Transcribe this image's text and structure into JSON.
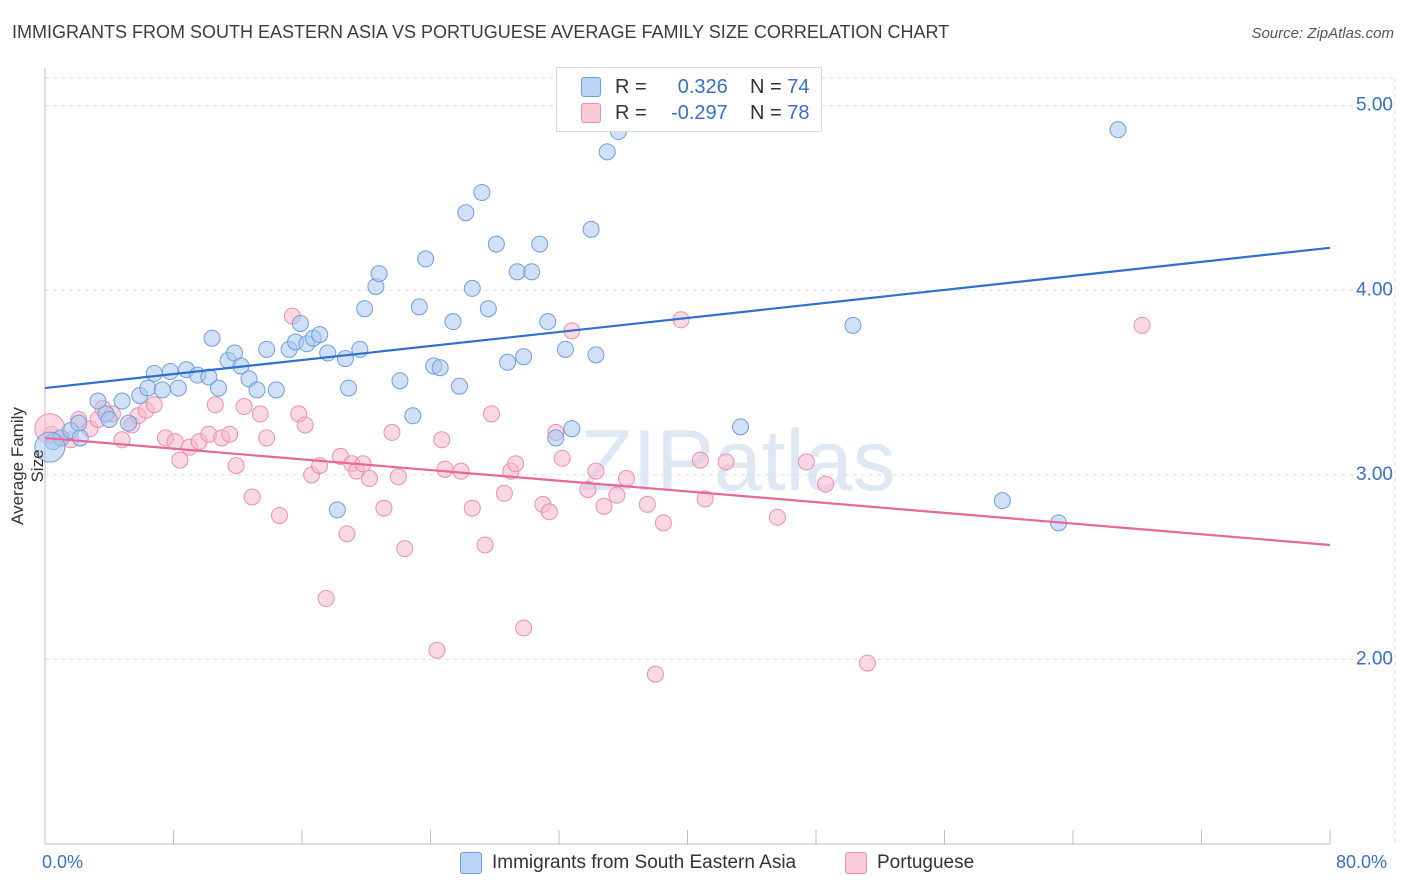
{
  "title": "IMMIGRANTS FROM SOUTH EASTERN ASIA VS PORTUGUESE AVERAGE FAMILY SIZE CORRELATION CHART",
  "source": "Source: ZipAtlas.com",
  "watermark": "ZIPatlas",
  "legend": {
    "row1": {
      "r_label": "R =",
      "r_value": "0.326",
      "n_label": "N =",
      "n_value": "74"
    },
    "row2": {
      "r_label": "R =",
      "r_value": "-0.297",
      "n_label": "N =",
      "n_value": "78"
    }
  },
  "bottom_legend": {
    "series1": "Immigrants from South Eastern Asia",
    "series2": "Portuguese"
  },
  "colors": {
    "blue_fill": "#a9c6ef",
    "blue_stroke": "#6f9ee0",
    "blue_line": "#2f6fcf",
    "pink_fill": "#f6b8cc",
    "pink_stroke": "#ec8fae",
    "pink_line": "#e8679a",
    "axis_text": "#3a6fc4"
  },
  "chart_data": {
    "type": "scatter",
    "title": "IMMIGRANTS FROM SOUTH EASTERN ASIA VS PORTUGUESE AVERAGE FAMILY SIZE CORRELATION CHART",
    "xlabel": "",
    "ylabel": "Average Family Size",
    "xlim": [
      0,
      80
    ],
    "ylim": [
      1.0,
      5.15
    ],
    "x_tick_labels": [
      "0.0%",
      "80.0%"
    ],
    "y_ticks": [
      2.0,
      3.0,
      4.0,
      5.0
    ],
    "y_tick_labels": [
      "2.00",
      "3.00",
      "4.00",
      "5.00"
    ],
    "grid": true,
    "legend_position": "top-center",
    "series": [
      {
        "name": "Immigrants from South Eastern Asia",
        "trend": {
          "x": [
            0,
            80
          ],
          "y": [
            3.47,
            4.23
          ]
        },
        "points": [
          [
            0.5,
            3.18
          ],
          [
            1.0,
            3.2
          ],
          [
            1.6,
            3.24
          ],
          [
            2.1,
            3.28
          ],
          [
            2.2,
            3.2
          ],
          [
            3.3,
            3.4
          ],
          [
            3.8,
            3.33
          ],
          [
            4.0,
            3.3
          ],
          [
            4.8,
            3.4
          ],
          [
            5.2,
            3.28
          ],
          [
            5.9,
            3.43
          ],
          [
            6.4,
            3.47
          ],
          [
            6.8,
            3.55
          ],
          [
            7.3,
            3.46
          ],
          [
            7.8,
            3.56
          ],
          [
            8.3,
            3.47
          ],
          [
            8.8,
            3.57
          ],
          [
            9.5,
            3.54
          ],
          [
            10.2,
            3.53
          ],
          [
            10.4,
            3.74
          ],
          [
            10.8,
            3.47
          ],
          [
            11.4,
            3.62
          ],
          [
            11.8,
            3.66
          ],
          [
            12.2,
            3.59
          ],
          [
            12.7,
            3.52
          ],
          [
            13.2,
            3.46
          ],
          [
            13.8,
            3.68
          ],
          [
            14.4,
            3.46
          ],
          [
            15.2,
            3.68
          ],
          [
            15.6,
            3.72
          ],
          [
            15.9,
            3.82
          ],
          [
            16.3,
            3.71
          ],
          [
            16.7,
            3.74
          ],
          [
            17.1,
            3.76
          ],
          [
            17.6,
            3.66
          ],
          [
            18.2,
            2.81
          ],
          [
            18.7,
            3.63
          ],
          [
            18.9,
            3.47
          ],
          [
            19.6,
            3.68
          ],
          [
            19.9,
            3.9
          ],
          [
            20.6,
            4.02
          ],
          [
            20.8,
            4.09
          ],
          [
            22.1,
            3.51
          ],
          [
            22.9,
            3.32
          ],
          [
            23.3,
            3.91
          ],
          [
            23.7,
            4.17
          ],
          [
            24.2,
            3.59
          ],
          [
            24.6,
            3.58
          ],
          [
            25.4,
            3.83
          ],
          [
            25.8,
            3.48
          ],
          [
            26.2,
            4.42
          ],
          [
            26.6,
            4.01
          ],
          [
            27.2,
            4.53
          ],
          [
            27.6,
            3.9
          ],
          [
            28.1,
            4.25
          ],
          [
            28.8,
            3.61
          ],
          [
            29.4,
            4.1
          ],
          [
            29.8,
            3.64
          ],
          [
            30.3,
            4.1
          ],
          [
            30.8,
            4.25
          ],
          [
            31.3,
            3.83
          ],
          [
            31.8,
            3.2
          ],
          [
            32.4,
            3.68
          ],
          [
            32.8,
            3.25
          ],
          [
            34.0,
            4.33
          ],
          [
            34.3,
            3.65
          ],
          [
            35.0,
            4.75
          ],
          [
            35.7,
            4.86
          ],
          [
            43.3,
            3.26
          ],
          [
            50.3,
            3.81
          ],
          [
            59.6,
            2.86
          ],
          [
            63.1,
            2.74
          ],
          [
            66.8,
            4.87
          ],
          [
            0.3,
            3.15
          ]
        ]
      },
      {
        "name": "Portuguese",
        "trend": {
          "x": [
            0,
            80
          ],
          "y": [
            3.2,
            2.62
          ]
        },
        "points": [
          [
            0.4,
            3.22
          ],
          [
            1.0,
            3.2
          ],
          [
            1.6,
            3.19
          ],
          [
            2.1,
            3.3
          ],
          [
            2.8,
            3.25
          ],
          [
            3.3,
            3.3
          ],
          [
            3.6,
            3.36
          ],
          [
            4.2,
            3.33
          ],
          [
            4.8,
            3.19
          ],
          [
            5.4,
            3.27
          ],
          [
            5.8,
            3.32
          ],
          [
            6.3,
            3.35
          ],
          [
            6.8,
            3.38
          ],
          [
            7.5,
            3.2
          ],
          [
            8.1,
            3.18
          ],
          [
            8.4,
            3.08
          ],
          [
            9.0,
            3.15
          ],
          [
            9.6,
            3.18
          ],
          [
            10.2,
            3.22
          ],
          [
            10.6,
            3.38
          ],
          [
            11.0,
            3.2
          ],
          [
            11.5,
            3.22
          ],
          [
            11.9,
            3.05
          ],
          [
            12.4,
            3.37
          ],
          [
            12.9,
            2.88
          ],
          [
            13.4,
            3.33
          ],
          [
            13.8,
            3.2
          ],
          [
            14.6,
            2.78
          ],
          [
            15.4,
            3.86
          ],
          [
            15.8,
            3.33
          ],
          [
            16.2,
            3.27
          ],
          [
            16.6,
            3.0
          ],
          [
            17.1,
            3.05
          ],
          [
            17.5,
            2.33
          ],
          [
            18.4,
            3.1
          ],
          [
            18.8,
            2.68
          ],
          [
            19.1,
            3.06
          ],
          [
            19.4,
            3.02
          ],
          [
            19.8,
            3.06
          ],
          [
            20.2,
            2.98
          ],
          [
            21.1,
            2.82
          ],
          [
            21.6,
            3.23
          ],
          [
            22.0,
            2.99
          ],
          [
            22.4,
            2.6
          ],
          [
            24.4,
            2.05
          ],
          [
            24.7,
            3.19
          ],
          [
            24.9,
            3.03
          ],
          [
            25.9,
            3.02
          ],
          [
            26.6,
            2.82
          ],
          [
            27.4,
            2.62
          ],
          [
            27.8,
            3.33
          ],
          [
            28.6,
            2.9
          ],
          [
            29.0,
            3.02
          ],
          [
            29.3,
            3.06
          ],
          [
            29.8,
            2.17
          ],
          [
            31.0,
            2.84
          ],
          [
            31.4,
            2.8
          ],
          [
            31.8,
            3.23
          ],
          [
            32.2,
            3.09
          ],
          [
            32.8,
            3.78
          ],
          [
            33.8,
            2.92
          ],
          [
            34.3,
            3.02
          ],
          [
            34.8,
            2.83
          ],
          [
            35.6,
            2.89
          ],
          [
            36.2,
            2.98
          ],
          [
            37.5,
            2.84
          ],
          [
            38.0,
            1.92
          ],
          [
            38.5,
            2.74
          ],
          [
            39.6,
            3.84
          ],
          [
            40.8,
            3.08
          ],
          [
            41.1,
            2.87
          ],
          [
            42.4,
            3.07
          ],
          [
            45.6,
            2.77
          ],
          [
            47.4,
            3.07
          ],
          [
            48.6,
            2.95
          ],
          [
            51.2,
            1.98
          ],
          [
            68.3,
            3.81
          ],
          [
            0.3,
            3.25
          ]
        ]
      }
    ]
  }
}
